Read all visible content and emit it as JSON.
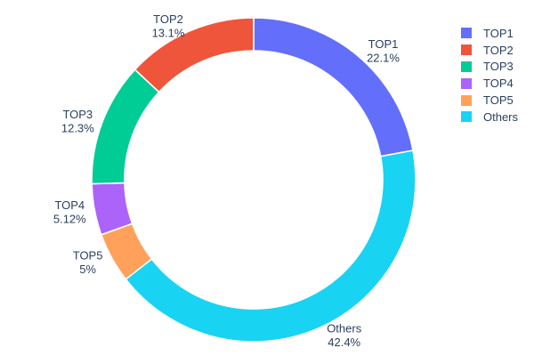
{
  "figure": {
    "background": "#ffffff",
    "text_color": "#2a3f5f",
    "slice_border_color": "#ffffff"
  },
  "chart_data": {
    "type": "pie",
    "subtype": "donut",
    "title": "",
    "hole_ratio": 0.8,
    "start_angle_deg": 0,
    "labels_outside": true,
    "display_order_clockwise": [
      "TOP1",
      "Others",
      "TOP5",
      "TOP4",
      "TOP3",
      "TOP2"
    ],
    "series": [
      {
        "name": "TOP1",
        "value_pct": 22.1,
        "pct_label": "22.1%",
        "color": "#636EFA"
      },
      {
        "name": "TOP2",
        "value_pct": 13.1,
        "pct_label": "13.1%",
        "color": "#EF553B"
      },
      {
        "name": "TOP3",
        "value_pct": 12.3,
        "pct_label": "12.3%",
        "color": "#00CC96"
      },
      {
        "name": "TOP4",
        "value_pct": 5.12,
        "pct_label": "5.12%",
        "color": "#AB63FA"
      },
      {
        "name": "TOP5",
        "value_pct": 5.0,
        "pct_label": "5%",
        "color": "#FFA15A"
      },
      {
        "name": "Others",
        "value_pct": 42.4,
        "pct_label": "42.4%",
        "color": "#19D3F3"
      }
    ],
    "legend": {
      "position": "top-right",
      "items": [
        "TOP1",
        "TOP2",
        "TOP3",
        "TOP4",
        "TOP5",
        "Others"
      ]
    }
  }
}
